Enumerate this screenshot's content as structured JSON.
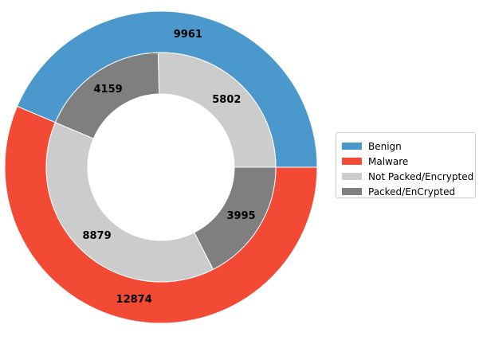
{
  "chart_data": {
    "type": "pie",
    "variant": "nested-donut",
    "rings": [
      {
        "name": "outer",
        "slices": [
          {
            "label": "Benign",
            "value": 9961,
            "color": "#4a98cc"
          },
          {
            "label": "Malware",
            "value": 12874,
            "color": "#f24a35"
          }
        ]
      },
      {
        "name": "inner",
        "slices": [
          {
            "label": "Not Packed/Encrypted",
            "value": 5802,
            "color": "#cccccc"
          },
          {
            "label": "Packed/EnCrypted",
            "value": 4159,
            "color": "#7f7f7f"
          },
          {
            "label": "Not Packed/Encrypted",
            "value": 8879,
            "color": "#cccccc"
          },
          {
            "label": "Packed/EnCrypted",
            "value": 3995,
            "color": "#7f7f7f"
          }
        ]
      }
    ],
    "legend": {
      "position": "right",
      "entries": [
        {
          "label": "Benign",
          "color": "#4a98cc"
        },
        {
          "label": "Malware",
          "color": "#f24a35"
        },
        {
          "label": "Not Packed/Encrypted",
          "color": "#cccccc"
        },
        {
          "label": "Packed/EnCrypted",
          "color": "#7f7f7f"
        }
      ]
    }
  }
}
